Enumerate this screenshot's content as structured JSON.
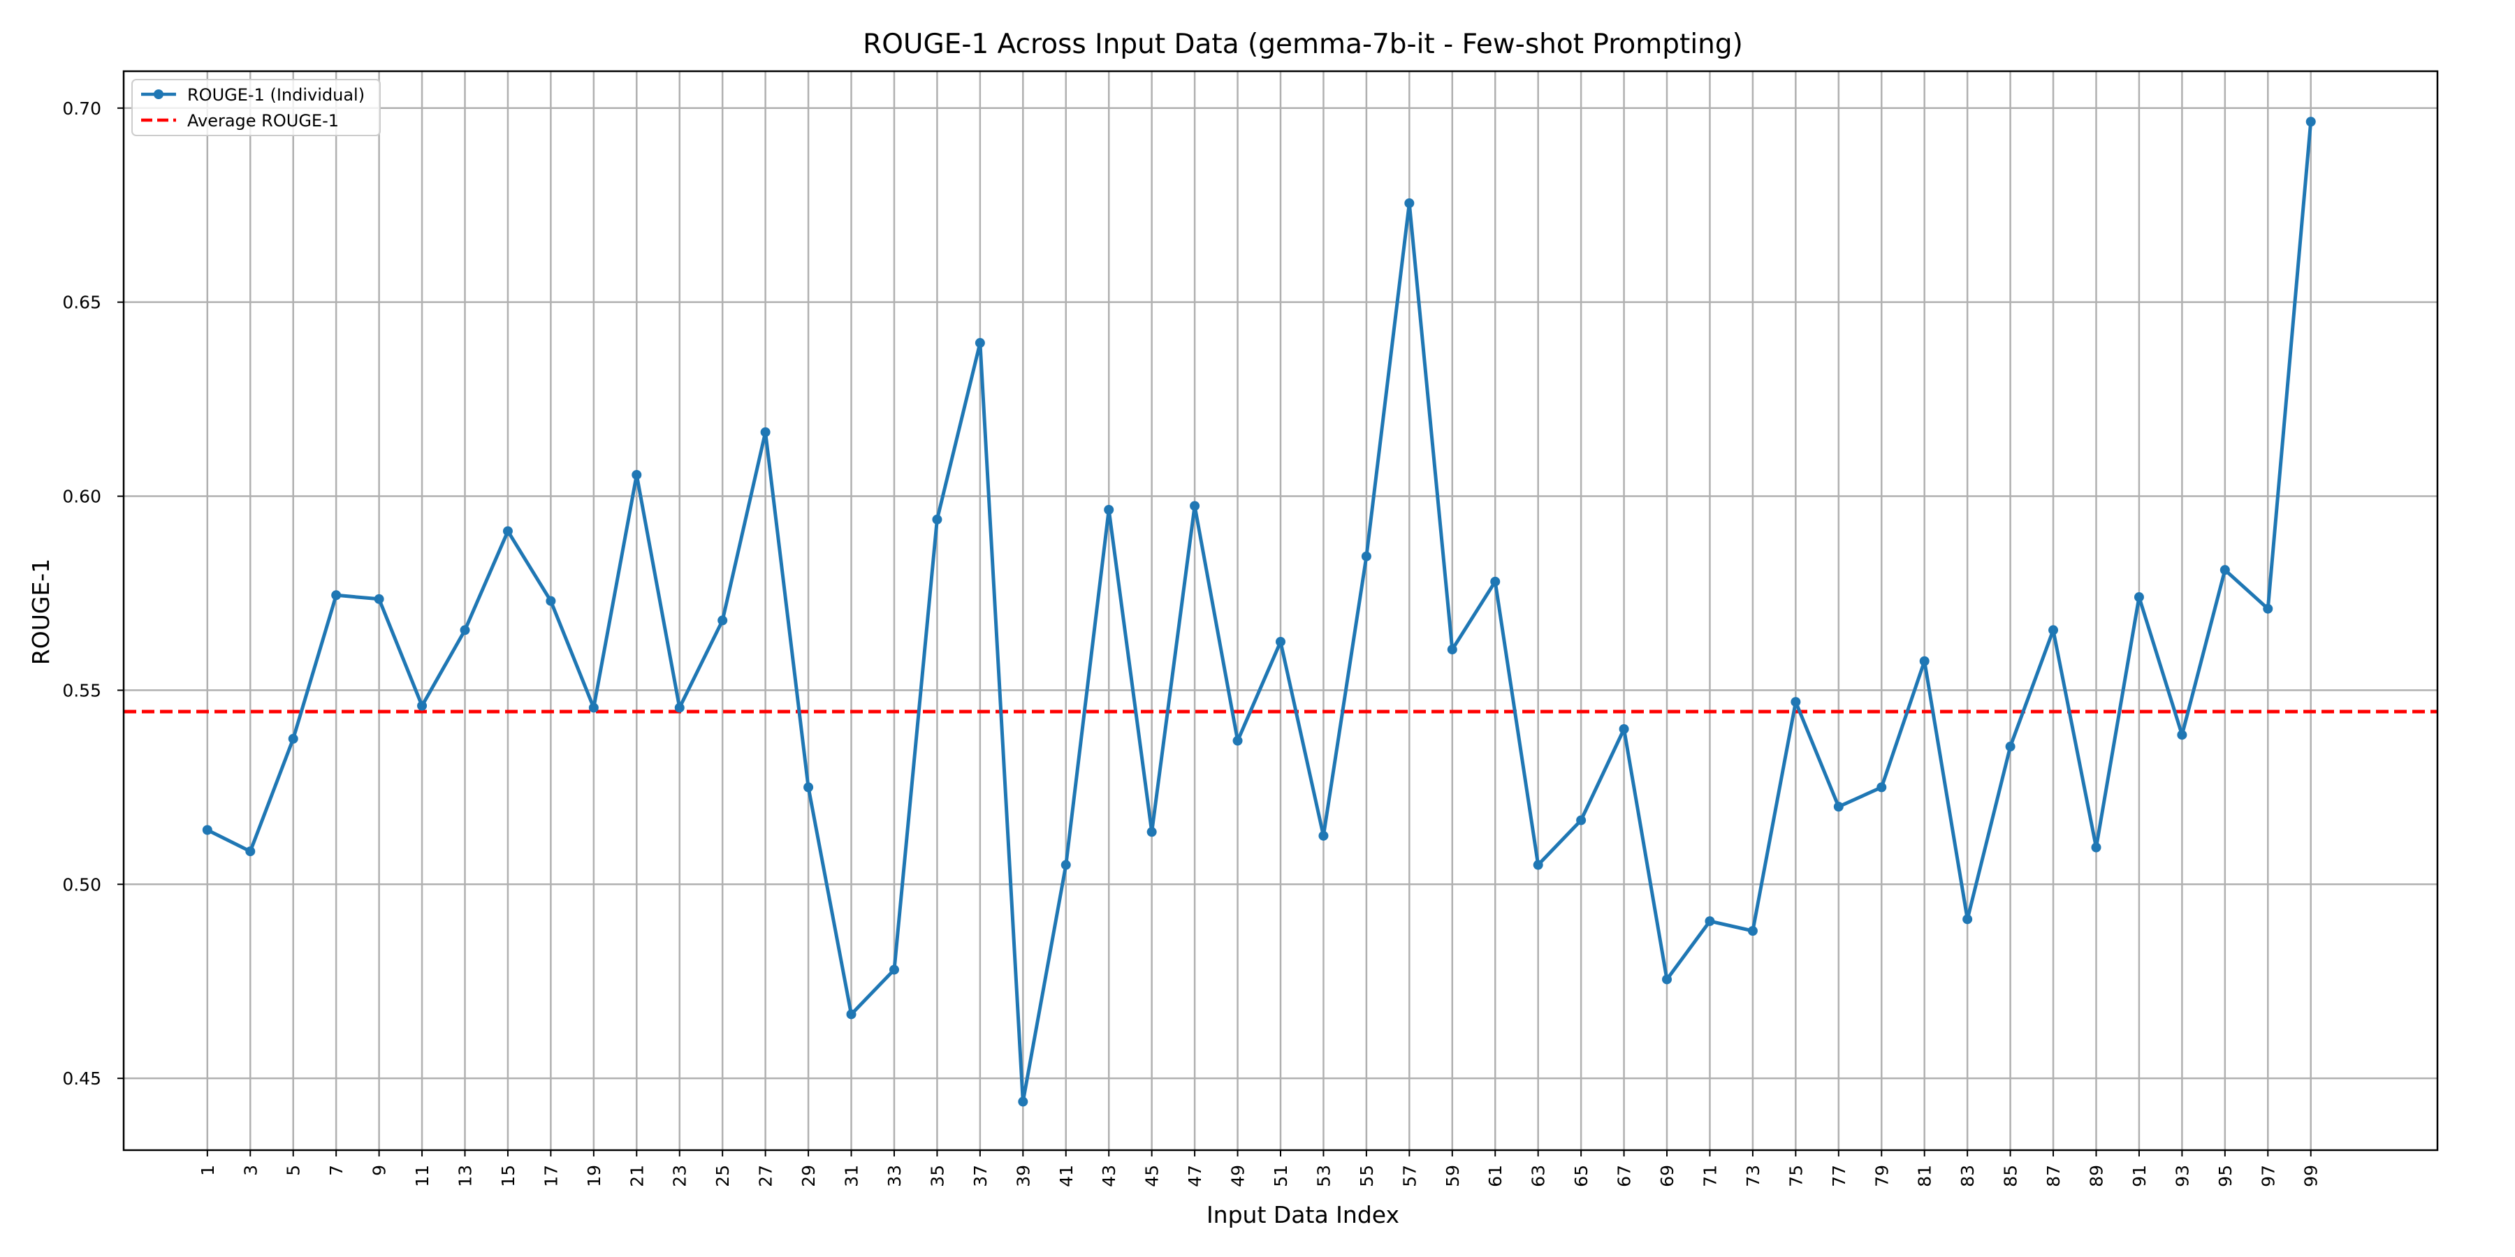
{
  "chart_data": {
    "type": "line",
    "title": "ROUGE-1 Across Input Data (gemma-7b-it - Few-shot Prompting)",
    "xlabel": "Input Data Index",
    "ylabel": "ROUGE-1",
    "xlim": [
      -2.9,
      104.9
    ],
    "ylim": [
      0.4315,
      0.7095
    ],
    "grid": true,
    "legend_position": "top-left",
    "x_ticks": [
      1,
      3,
      5,
      7,
      9,
      11,
      13,
      15,
      17,
      19,
      21,
      23,
      25,
      27,
      29,
      31,
      33,
      35,
      37,
      39,
      41,
      43,
      45,
      47,
      49,
      51,
      53,
      55,
      57,
      59,
      61,
      63,
      65,
      67,
      69,
      71,
      73,
      75,
      77,
      79,
      81,
      83,
      85,
      87,
      89,
      91,
      93,
      95,
      97,
      99
    ],
    "x_tick_labels": [
      "1",
      "3",
      "5",
      "7",
      "9",
      "11",
      "13",
      "15",
      "17",
      "19",
      "21",
      "23",
      "25",
      "27",
      "29",
      "31",
      "33",
      "35",
      "37",
      "39",
      "41",
      "43",
      "45",
      "47",
      "49",
      "51",
      "53",
      "55",
      "57",
      "59",
      "61",
      "63",
      "65",
      "67",
      "69",
      "71",
      "73",
      "75",
      "77",
      "79",
      "81",
      "83",
      "85",
      "87",
      "89",
      "91",
      "93",
      "95",
      "97",
      "99"
    ],
    "y_ticks": [
      0.45,
      0.5,
      0.55,
      0.6,
      0.65,
      0.7
    ],
    "y_tick_labels": [
      "0.45",
      "0.50",
      "0.55",
      "0.60",
      "0.65",
      "0.70"
    ],
    "series": [
      {
        "name": "ROUGE-1 (Individual)",
        "color": "#1f77b4",
        "style": "solid",
        "marker": "circle",
        "x": [
          1,
          3,
          5,
          7,
          9,
          11,
          13,
          15,
          17,
          19,
          21,
          23,
          25,
          27,
          29,
          31,
          33,
          35,
          37,
          39,
          41,
          43,
          45,
          47,
          49,
          51,
          53,
          55,
          57,
          59,
          61,
          63,
          65,
          67,
          69,
          71,
          73,
          75,
          77,
          79,
          81,
          83,
          85,
          87,
          89,
          91,
          93,
          95,
          97,
          99
        ],
        "y": [
          0.514,
          0.5085,
          0.5375,
          0.5745,
          0.5735,
          0.546,
          0.5655,
          0.591,
          0.573,
          0.5455,
          0.6055,
          0.5455,
          0.568,
          0.6165,
          0.525,
          0.4665,
          0.478,
          0.594,
          0.6395,
          0.444,
          0.505,
          0.5965,
          0.5135,
          0.5975,
          0.537,
          0.5625,
          0.5125,
          0.5845,
          0.6755,
          0.5605,
          0.578,
          0.505,
          0.5165,
          0.54,
          0.4755,
          0.4905,
          0.488,
          0.547,
          0.52,
          0.525,
          0.5575,
          0.491,
          0.5355,
          0.5655,
          0.5095,
          0.574,
          0.5385,
          0.581,
          0.571,
          0.6965
        ]
      },
      {
        "name": "Average ROUGE-1",
        "color": "#ff0000",
        "style": "dashed",
        "y_constant": 0.5445
      }
    ]
  }
}
